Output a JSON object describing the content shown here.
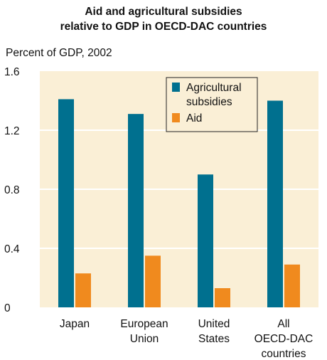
{
  "chart_data": {
    "type": "bar",
    "title_lines": [
      "Aid and agricultural subsidies",
      "relative to GDP in OECD-DAC countries"
    ],
    "ylabel": "Percent of GDP, 2002",
    "xlabel": "",
    "ylim": [
      0,
      1.6
    ],
    "y_ticks": [
      "0",
      "0.4",
      "0.8",
      "1.2",
      "1.6"
    ],
    "grid": true,
    "legend_position": "top-right",
    "categories": [
      [
        "Japan"
      ],
      [
        "European",
        "Union"
      ],
      [
        "United",
        "States"
      ],
      [
        "All",
        "OECD-DAC",
        "countries"
      ]
    ],
    "series": [
      {
        "name_lines": [
          "Agricultural",
          "subsidies"
        ],
        "color": "#00708f",
        "values": [
          1.41,
          1.31,
          0.9,
          1.4
        ]
      },
      {
        "name_lines": [
          "Aid"
        ],
        "color": "#f08a1e",
        "values": [
          0.23,
          0.35,
          0.13,
          0.29
        ]
      }
    ],
    "plot_background": "#faefd6",
    "grid_color": "#ffffff"
  }
}
